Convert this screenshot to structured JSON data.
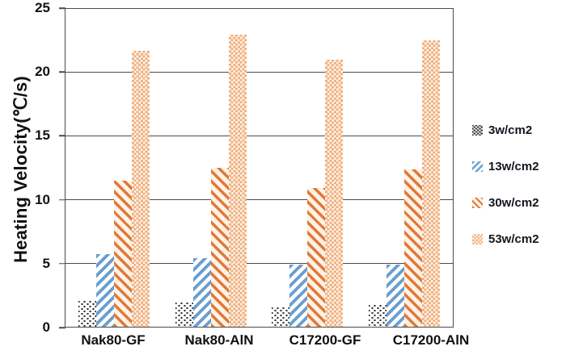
{
  "chart_data": {
    "type": "bar",
    "title": "",
    "xlabel": "",
    "ylabel": "Heating Velocity(℃/s)",
    "categories": [
      "Nak80-GF",
      "Nak80-AlN",
      "C17200-GF",
      "C17200-AlN"
    ],
    "series": [
      {
        "name": "3w/cm2",
        "pattern": "black-dots",
        "values": [
          2.0,
          1.9,
          1.5,
          1.7
        ]
      },
      {
        "name": "13w/cm2",
        "pattern": "blue-diagonal-up",
        "values": [
          5.7,
          5.4,
          4.9,
          4.9
        ]
      },
      {
        "name": "30w/cm2",
        "pattern": "orange-diagonal-down",
        "values": [
          11.5,
          12.5,
          10.9,
          12.4
        ]
      },
      {
        "name": "53w/cm2",
        "pattern": "orange-checker",
        "values": [
          21.7,
          23.0,
          21.0,
          22.5
        ]
      }
    ],
    "ylim": [
      0,
      25
    ],
    "yticks": [
      0,
      5,
      10,
      15,
      20,
      25
    ],
    "grid": "horizontal-only",
    "legend_position": "right-outside"
  },
  "colors": {
    "stripe_blue": "#6a9fd0",
    "stripe_orange": "#e0793a",
    "checker_orange": "#efae7d",
    "pattern_cream": "#fdf2e6",
    "dot_black": "#2b2b2b",
    "axis_line": "#4a4a4a",
    "text": "#111111"
  }
}
